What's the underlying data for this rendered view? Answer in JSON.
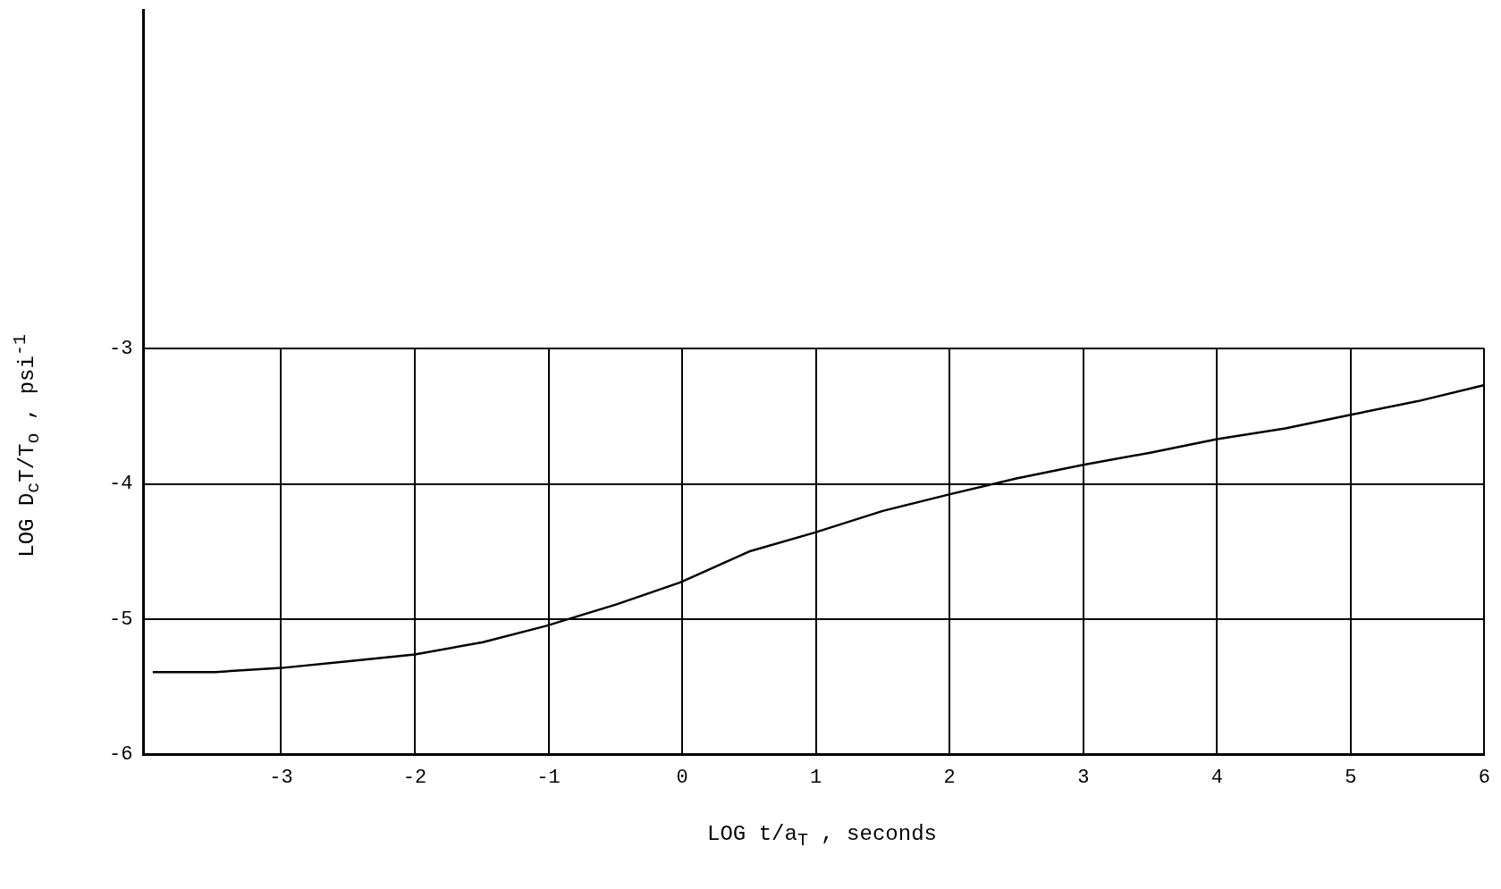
{
  "chart_data": {
    "type": "line",
    "xlabel": "LOG t/a$_{T}$ , seconds",
    "ylabel": "LOG D$_{c}$T/T$_{o}$ , psi$^{-1}$",
    "x": [
      -3.96,
      -3.49,
      -3,
      -2.49,
      -2,
      -1.49,
      -1.02,
      -0.49,
      -0.02,
      0.5,
      0.99,
      1.5,
      1.99,
      2.5,
      3,
      3.5,
      4,
      4.51,
      5,
      5.5,
      6
    ],
    "series": [
      {
        "color": "#000000",
        "values": [
          -5.39,
          -5.39,
          -5.36,
          -5.31,
          -5.26,
          -5.17,
          -5.05,
          -4.89,
          -4.73,
          -4.5,
          -4.36,
          -4.2,
          -4.08,
          -3.96,
          -3.86,
          -3.77,
          -3.67,
          -3.59,
          -3.49,
          -3.39,
          -3.27
        ]
      }
    ],
    "xlim": [
      -4.03,
      6
    ],
    "ylim": [
      -6,
      -3
    ],
    "xticks": [
      -3,
      -2,
      -1,
      0,
      1,
      2,
      3,
      4,
      5,
      6
    ],
    "yticks": [
      -6,
      -5,
      -4,
      -3
    ],
    "grid": true,
    "legend": false,
    "marker": "none",
    "line_style": "solid"
  }
}
